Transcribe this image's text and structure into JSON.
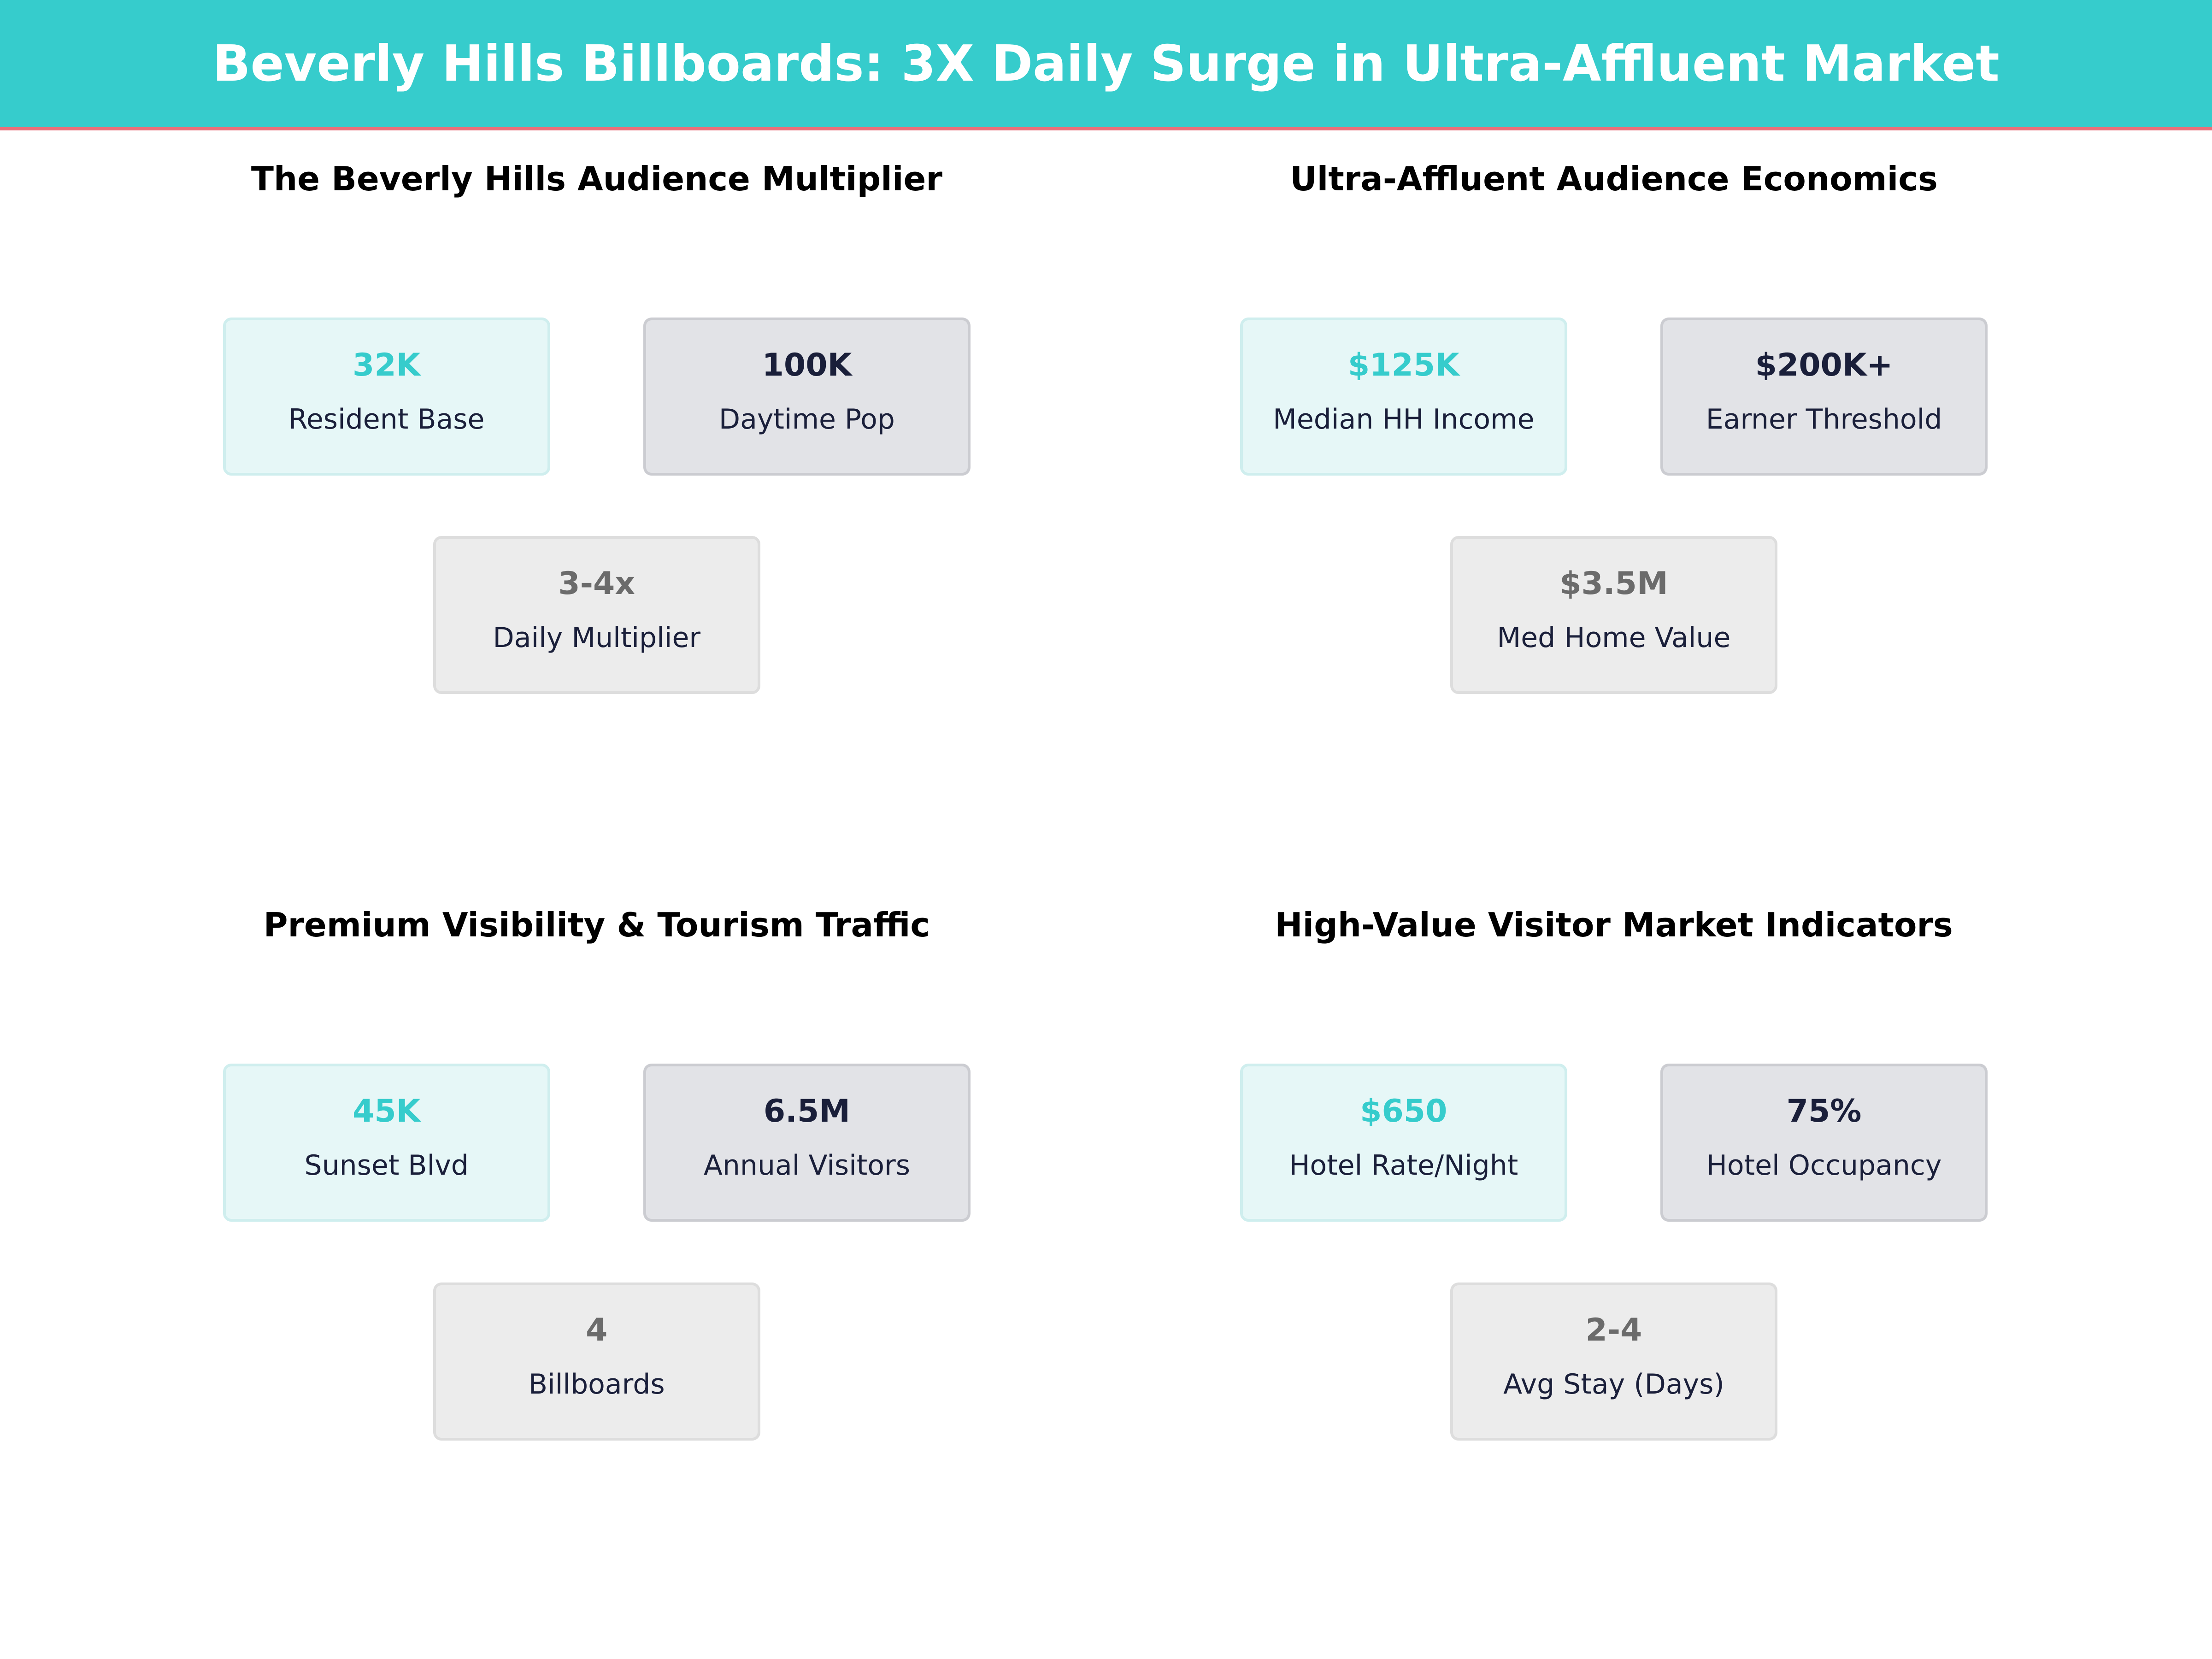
{
  "header": {
    "title": "Beverly Hills Billboards: 3X Daily Surge in Ultra-Affluent Market"
  },
  "panels": [
    {
      "title": "The Beverly Hills Audience Multiplier",
      "cards": [
        {
          "value": "32K",
          "label": "Resident Base"
        },
        {
          "value": "100K",
          "label": "Daytime Pop"
        },
        {
          "value": "3-4x",
          "label": "Daily Multiplier"
        }
      ]
    },
    {
      "title": "Ultra-Affluent Audience Economics",
      "cards": [
        {
          "value": "$125K",
          "label": "Median HH Income"
        },
        {
          "value": "$200K+",
          "label": "Earner Threshold"
        },
        {
          "value": "$3.5M",
          "label": "Med Home Value"
        }
      ]
    },
    {
      "title": "Premium Visibility & Tourism Traffic",
      "cards": [
        {
          "value": "45K",
          "label": "Sunset Blvd"
        },
        {
          "value": "6.5M",
          "label": "Annual Visitors"
        },
        {
          "value": "4",
          "label": "Billboards"
        }
      ]
    },
    {
      "title": "High-Value Visitor Market Indicators",
      "cards": [
        {
          "value": "$650",
          "label": "Hotel Rate/Night"
        },
        {
          "value": "75%",
          "label": "Hotel Occupancy"
        },
        {
          "value": "2-4",
          "label": "Avg Stay (Days)"
        }
      ]
    }
  ]
}
